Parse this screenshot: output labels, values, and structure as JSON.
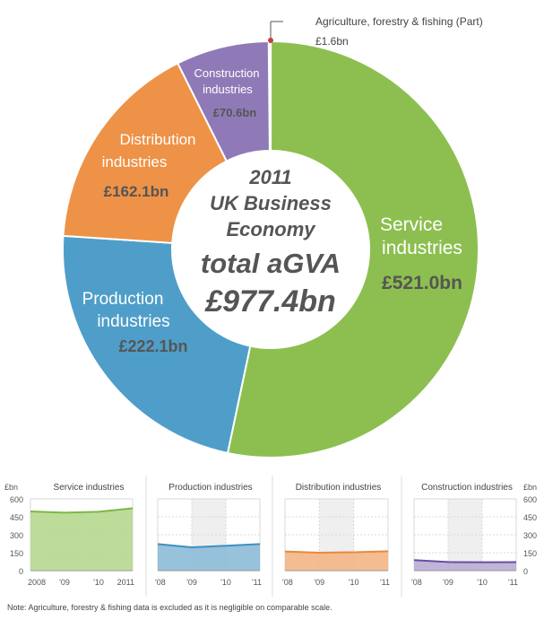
{
  "colors": {
    "service": "#8cbf4f",
    "production": "#4f9ec9",
    "distribution": "#ee9247",
    "construction": "#8f7ab7",
    "agriculture": "#cc3c3c",
    "text_dark": "#555555",
    "text_mid": "#444444",
    "grid": "#d8d8d8",
    "band": "#efefef"
  },
  "donut": {
    "center_lines": [
      "2011",
      "UK Business",
      "Economy",
      "total aGVA",
      "£977.4bn"
    ],
    "agri_label": "Agriculture, forestry & fishing (Part)",
    "agri_value": "£1.6bn",
    "service_label": [
      "Service",
      "industries"
    ],
    "service_value": "£521.0bn",
    "production_label": [
      "Production",
      "industries"
    ],
    "production_value": "£222.1bn",
    "distribution_label": [
      "Distribution",
      "industries"
    ],
    "distribution_value": "£162.1bn",
    "construction_label": [
      "Construction",
      "industries"
    ],
    "construction_value": "£70.6bn"
  },
  "small": {
    "unit_label": "£bn",
    "y_ticks": [
      "600",
      "450",
      "300",
      "150",
      "0"
    ],
    "x_ticks_first": [
      "2008",
      "'09",
      "'10",
      "2011"
    ],
    "x_ticks_other": [
      "'08",
      "'09",
      "'10",
      "'11"
    ]
  },
  "note": "Note: Agriculture, forestry & fishing data is excluded as it is negligible on comparable scale.",
  "chart_data": [
    {
      "type": "pie",
      "title": "2011 UK Business Economy total aGVA £977.4bn",
      "unit": "£bn",
      "categories": [
        "Agriculture, forestry & fishing (Part)",
        "Service industries",
        "Production industries",
        "Distribution industries",
        "Construction industries"
      ],
      "values": [
        1.6,
        521.0,
        222.1,
        162.1,
        70.6
      ]
    },
    {
      "type": "area",
      "title": "Service industries",
      "ylabel": "£bn",
      "x": [
        "2008",
        "'09",
        "'10",
        "2011"
      ],
      "values": [
        495,
        485,
        492,
        521
      ],
      "ylim": [
        0,
        600
      ]
    },
    {
      "type": "area",
      "title": "Production industries",
      "ylabel": "£bn",
      "x": [
        "'08",
        "'09",
        "'10",
        "'11"
      ],
      "values": [
        222,
        195,
        208,
        222
      ],
      "ylim": [
        0,
        600
      ]
    },
    {
      "type": "area",
      "title": "Distribution industries",
      "ylabel": "£bn",
      "x": [
        "'08",
        "'09",
        "'10",
        "'11"
      ],
      "values": [
        160,
        150,
        154,
        162
      ],
      "ylim": [
        0,
        600
      ]
    },
    {
      "type": "area",
      "title": "Construction industries",
      "ylabel": "£bn",
      "x": [
        "'08",
        "'09",
        "'10",
        "'11"
      ],
      "values": [
        88,
        72,
        70,
        71
      ],
      "ylim": [
        0,
        600
      ]
    }
  ]
}
